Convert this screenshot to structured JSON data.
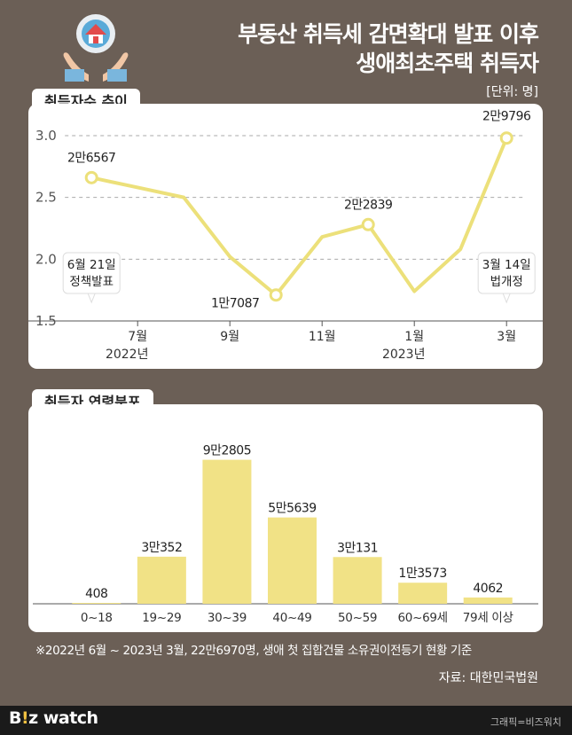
{
  "title": {
    "line1": "부동산 취득세 감면확대 발표 이후",
    "line2": "생애최초주택 취득자"
  },
  "unit": "[단위: 명]",
  "line_panel_label": "취득자수 추이",
  "bar_panel_label": "취득자 연령분포",
  "note": "※2022년 6월 ~ 2023년 3월, 22만6970명, 생애 첫 집합건물 소유권이전등기 현황 기준",
  "source": "자료: 대한민국법원",
  "footer": {
    "brand_main": "B",
    "brand_dot": "!",
    "brand_rest": "z watch",
    "credit": "그래픽=비즈워치"
  },
  "colors": {
    "background": "#6b5f56",
    "accent": "#f1e286",
    "line": "#ece07a"
  },
  "icon": "house-in-hands-icon",
  "chart_data": [
    {
      "type": "line",
      "ylim": [
        1.5,
        3.1
      ],
      "yticks": [
        "1.5",
        "2.0",
        "2.5",
        "3.0"
      ],
      "xlim": [
        0,
        10
      ],
      "x": [
        0.6,
        1.6,
        2.6,
        3.6,
        4.6,
        5.6,
        6.6,
        7.6,
        8.6,
        9.6
      ],
      "values": [
        2.66,
        2.58,
        2.5,
        2.02,
        1.71,
        2.18,
        2.28,
        1.74,
        2.08,
        2.98
      ],
      "xticks": [
        {
          "x": 1.6,
          "label": "7월",
          "sub": "2022년"
        },
        {
          "x": 3.6,
          "label": "9월",
          "sub": ""
        },
        {
          "x": 5.6,
          "label": "11월",
          "sub": ""
        },
        {
          "x": 7.6,
          "label": "1월",
          "sub": "2023년"
        },
        {
          "x": 9.6,
          "label": "3월",
          "sub": ""
        }
      ],
      "data_labels": [
        {
          "index": 0,
          "text": "2만6567"
        },
        {
          "index": 4,
          "text": "1만7087"
        },
        {
          "index": 6,
          "text": "2만2839"
        },
        {
          "index": 9,
          "text": "2만9796"
        }
      ],
      "annotations": [
        {
          "x": 0.6,
          "line1": "6월 21일",
          "line2": "정책발표"
        },
        {
          "x": 9.6,
          "line1": "3월 14일",
          "line2": "법개정"
        }
      ],
      "grid": true
    },
    {
      "type": "bar",
      "categories": [
        "0~18",
        "19~29",
        "30~39",
        "40~49",
        "50~59",
        "60~69세",
        "79세 이상"
      ],
      "values": [
        408,
        30352,
        92805,
        55639,
        30131,
        13573,
        4062
      ],
      "labels": [
        "408",
        "3만352",
        "9만2805",
        "5만5639",
        "3만131",
        "1만3573",
        "4062"
      ],
      "ylim": [
        0,
        100000
      ]
    }
  ]
}
